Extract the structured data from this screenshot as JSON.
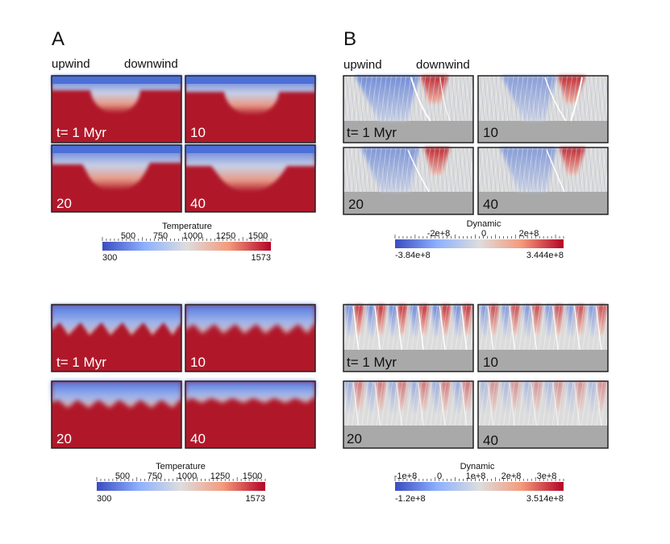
{
  "panel_a": {
    "letter": "A",
    "upwind_label": "upwind",
    "downwind_label": "downwind",
    "top": {
      "panels": [
        {
          "time_label": "t= 1 Myr"
        },
        {
          "time_label": "10"
        },
        {
          "time_label": "20"
        },
        {
          "time_label": "40"
        }
      ],
      "colorbar": {
        "title": "Temperature",
        "ticks": [
          "500",
          "750",
          "1000",
          "1250",
          "1500"
        ],
        "min_label": "300",
        "max_label": "1573",
        "min": 300,
        "max": 1573,
        "colors": {
          "low": "#3b4cc0",
          "mid": "#dddddd",
          "high": "#b40426"
        }
      }
    },
    "bottom": {
      "panels": [
        {
          "time_label": "t= 1 Myr"
        },
        {
          "time_label": "10"
        },
        {
          "time_label": "20"
        },
        {
          "time_label": "40"
        }
      ],
      "colorbar": {
        "title": "Temperature",
        "ticks": [
          "500",
          "750",
          "1000",
          "1250",
          "1500"
        ],
        "min_label": "300",
        "max_label": "1573",
        "min": 300,
        "max": 1573
      }
    }
  },
  "panel_b": {
    "letter": "B",
    "upwind_label": "upwind",
    "downwind_label": "downwind",
    "top": {
      "panels": [
        {
          "time_label": "t= 1 Myr"
        },
        {
          "time_label": "10"
        },
        {
          "time_label": "20"
        },
        {
          "time_label": "40"
        }
      ],
      "colorbar": {
        "title": "Dynamic",
        "ticks": [
          "-2e+8",
          "0",
          "2e+8"
        ],
        "min_label": "-3.84e+8",
        "max_label": "3.444e+8",
        "min": -384000000,
        "max": 344400000
      }
    },
    "bottom": {
      "panels": [
        {
          "time_label": "t= 1 Myr"
        },
        {
          "time_label": "10"
        },
        {
          "time_label": "20"
        },
        {
          "time_label": "40"
        }
      ],
      "colorbar": {
        "title": "Dynamic",
        "ticks": [
          "-1e+8",
          "0",
          "1e+8",
          "2e+8",
          "3e+8"
        ],
        "min_label": "-1.2e+8",
        "max_label": "3.514e+8",
        "min": -120000000,
        "max": 351400000
      }
    }
  },
  "colors": {
    "mantle_red": "#b0182a",
    "cold_blue": "#4a73d6",
    "panel_border": "#222222",
    "gray_lower": "#a9a9a9"
  }
}
